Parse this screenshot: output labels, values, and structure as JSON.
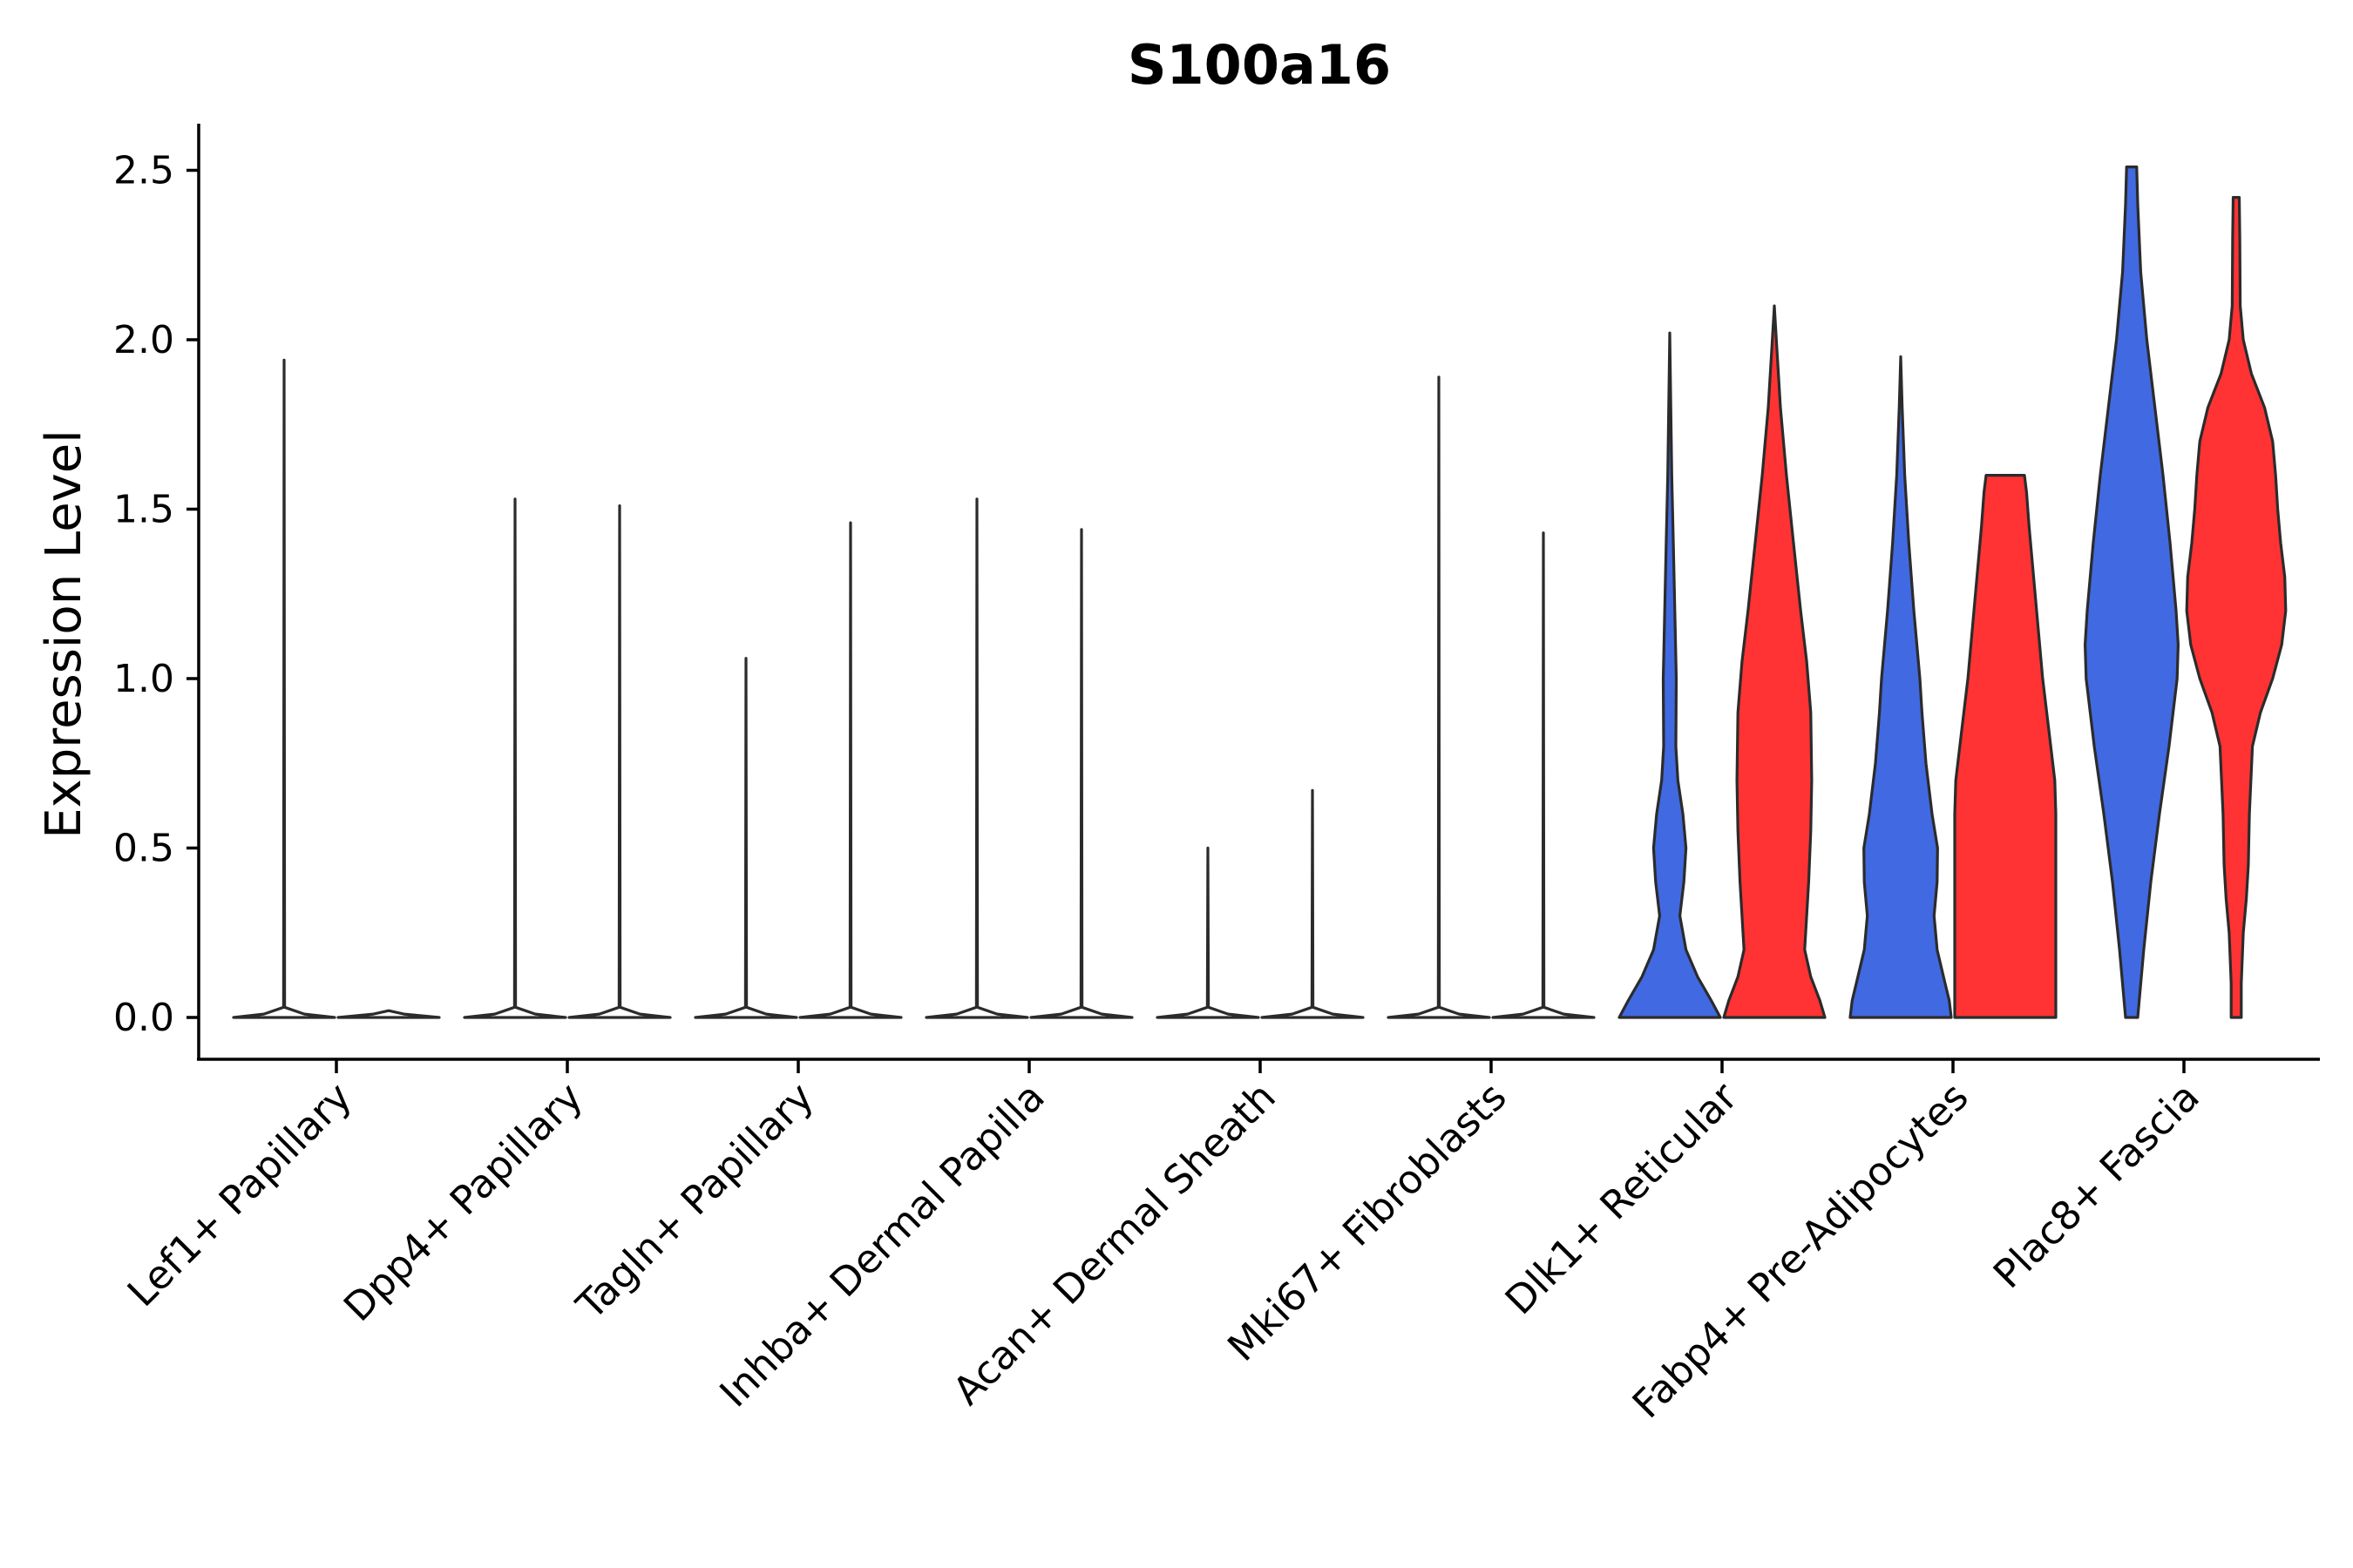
{
  "chart_data": {
    "type": "violin",
    "title": "S100a16",
    "xlabel": "",
    "ylabel": "Expression Level",
    "ylim": [
      -0.12,
      2.62
    ],
    "yticks": [
      "0.0",
      "0.5",
      "1.0",
      "1.5",
      "2.0",
      "2.5"
    ],
    "ytick_values": [
      0,
      0.5,
      1.0,
      1.5,
      2.0,
      2.5
    ],
    "grid": false,
    "legend": "none",
    "colors": {
      "low": "#ffffff",
      "blue": "#4169E1",
      "red": "#FF3333",
      "outline": "#2b2b2b"
    },
    "categories": [
      "Lef1+ Papillary",
      "Dpp4+ Papillary",
      "Tagln+ Papillary",
      "Inhba+ Dermal Papilla",
      "Acan+ Dermal Sheath",
      "Mki67+ Fibroblasts",
      "Dlk1+ Reticular",
      "Fabp4+ Pre-Adipocytes",
      "Plac8+ Fascia"
    ],
    "violins": [
      {
        "category_index": 0,
        "side": "left",
        "color": "white",
        "max": 1.94,
        "profile": [
          [
            0,
            1.0
          ],
          [
            0.01,
            0.4
          ],
          [
            0.03,
            0.01
          ],
          [
            1.94,
            0.0
          ]
        ]
      },
      {
        "category_index": 0,
        "side": "right",
        "color": "white",
        "max": 0.0,
        "profile": [
          [
            0,
            1.0
          ],
          [
            0.01,
            0.3
          ],
          [
            0.02,
            0.0
          ]
        ]
      },
      {
        "category_index": 1,
        "side": "left",
        "color": "white",
        "max": 1.53,
        "profile": [
          [
            0,
            1.0
          ],
          [
            0.01,
            0.4
          ],
          [
            0.03,
            0.01
          ],
          [
            1.53,
            0.0
          ]
        ]
      },
      {
        "category_index": 1,
        "side": "right",
        "color": "white",
        "max": 1.51,
        "profile": [
          [
            0,
            1.0
          ],
          [
            0.01,
            0.4
          ],
          [
            0.03,
            0.01
          ],
          [
            1.51,
            0.0
          ]
        ]
      },
      {
        "category_index": 2,
        "side": "left",
        "color": "white",
        "max": 1.06,
        "profile": [
          [
            0,
            1.0
          ],
          [
            0.01,
            0.4
          ],
          [
            0.03,
            0.01
          ],
          [
            1.06,
            0.0
          ]
        ]
      },
      {
        "category_index": 2,
        "side": "right",
        "color": "white",
        "max": 1.46,
        "profile": [
          [
            0,
            1.0
          ],
          [
            0.01,
            0.4
          ],
          [
            0.03,
            0.01
          ],
          [
            1.46,
            0.0
          ]
        ]
      },
      {
        "category_index": 3,
        "side": "left",
        "color": "white",
        "max": 1.53,
        "profile": [
          [
            0,
            1.0
          ],
          [
            0.01,
            0.4
          ],
          [
            0.03,
            0.01
          ],
          [
            1.53,
            0.0
          ]
        ]
      },
      {
        "category_index": 3,
        "side": "right",
        "color": "white",
        "max": 1.44,
        "profile": [
          [
            0,
            1.0
          ],
          [
            0.01,
            0.4
          ],
          [
            0.03,
            0.01
          ],
          [
            1.44,
            0.0
          ]
        ]
      },
      {
        "category_index": 4,
        "side": "left",
        "color": "white",
        "max": 0.5,
        "profile": [
          [
            0,
            1.0
          ],
          [
            0.01,
            0.4
          ],
          [
            0.03,
            0.01
          ],
          [
            0.5,
            0.0
          ]
        ]
      },
      {
        "category_index": 4,
        "side": "right",
        "color": "white",
        "max": 0.67,
        "profile": [
          [
            0,
            1.0
          ],
          [
            0.01,
            0.4
          ],
          [
            0.03,
            0.01
          ],
          [
            0.67,
            0.0
          ]
        ]
      },
      {
        "category_index": 5,
        "side": "left",
        "color": "white",
        "max": 1.89,
        "profile": [
          [
            0,
            1.0
          ],
          [
            0.01,
            0.4
          ],
          [
            0.03,
            0.01
          ],
          [
            1.89,
            0.0
          ]
        ]
      },
      {
        "category_index": 5,
        "side": "right",
        "color": "white",
        "max": 1.43,
        "profile": [
          [
            0,
            1.0
          ],
          [
            0.01,
            0.4
          ],
          [
            0.03,
            0.01
          ],
          [
            1.43,
            0.0
          ]
        ]
      },
      {
        "category_index": 6,
        "side": "left",
        "color": "blue",
        "max": 2.02,
        "profile": [
          [
            0,
            1.0
          ],
          [
            0.05,
            0.82
          ],
          [
            0.12,
            0.55
          ],
          [
            0.2,
            0.32
          ],
          [
            0.3,
            0.2
          ],
          [
            0.4,
            0.28
          ],
          [
            0.5,
            0.32
          ],
          [
            0.6,
            0.26
          ],
          [
            0.7,
            0.16
          ],
          [
            0.8,
            0.12
          ],
          [
            1.0,
            0.13
          ],
          [
            1.2,
            0.1
          ],
          [
            1.4,
            0.07
          ],
          [
            1.6,
            0.04
          ],
          [
            1.8,
            0.02
          ],
          [
            2.02,
            0.0
          ]
        ]
      },
      {
        "category_index": 6,
        "side": "right",
        "color": "red",
        "max": 2.1,
        "profile": [
          [
            0,
            1.0
          ],
          [
            0.05,
            0.9
          ],
          [
            0.12,
            0.72
          ],
          [
            0.2,
            0.6
          ],
          [
            0.3,
            0.64
          ],
          [
            0.4,
            0.68
          ],
          [
            0.55,
            0.72
          ],
          [
            0.7,
            0.74
          ],
          [
            0.9,
            0.72
          ],
          [
            1.05,
            0.64
          ],
          [
            1.2,
            0.52
          ],
          [
            1.4,
            0.38
          ],
          [
            1.6,
            0.24
          ],
          [
            1.8,
            0.12
          ],
          [
            2.0,
            0.04
          ],
          [
            2.1,
            0.0
          ]
        ]
      },
      {
        "category_index": 7,
        "side": "left",
        "color": "blue",
        "max": 1.95,
        "profile": [
          [
            0,
            1.0
          ],
          [
            0.05,
            0.96
          ],
          [
            0.1,
            0.88
          ],
          [
            0.2,
            0.72
          ],
          [
            0.3,
            0.66
          ],
          [
            0.4,
            0.72
          ],
          [
            0.5,
            0.73
          ],
          [
            0.6,
            0.62
          ],
          [
            0.75,
            0.5
          ],
          [
            0.9,
            0.42
          ],
          [
            1.0,
            0.38
          ],
          [
            1.2,
            0.26
          ],
          [
            1.4,
            0.16
          ],
          [
            1.6,
            0.08
          ],
          [
            1.8,
            0.03
          ],
          [
            1.95,
            0.0
          ]
        ]
      },
      {
        "category_index": 7,
        "side": "right",
        "color": "red",
        "max": 1.6,
        "profile": [
          [
            0,
            1.0
          ],
          [
            0.2,
            1.0
          ],
          [
            0.4,
            1.0
          ],
          [
            0.6,
            1.0
          ],
          [
            0.7,
            0.98
          ],
          [
            0.85,
            0.86
          ],
          [
            1.0,
            0.74
          ],
          [
            1.15,
            0.65
          ],
          [
            1.3,
            0.56
          ],
          [
            1.45,
            0.47
          ],
          [
            1.55,
            0.42
          ],
          [
            1.6,
            0.38
          ]
        ]
      },
      {
        "category_index": 8,
        "side": "left",
        "color": "blue",
        "max": 2.51,
        "profile": [
          [
            0,
            0.12
          ],
          [
            0.2,
            0.24
          ],
          [
            0.4,
            0.38
          ],
          [
            0.6,
            0.55
          ],
          [
            0.8,
            0.74
          ],
          [
            1.0,
            0.9
          ],
          [
            1.1,
            0.92
          ],
          [
            1.2,
            0.88
          ],
          [
            1.4,
            0.76
          ],
          [
            1.6,
            0.62
          ],
          [
            1.8,
            0.46
          ],
          [
            2.0,
            0.3
          ],
          [
            2.2,
            0.18
          ],
          [
            2.4,
            0.12
          ],
          [
            2.51,
            0.1
          ]
        ]
      },
      {
        "category_index": 8,
        "side": "right",
        "color": "red",
        "max": 2.42,
        "profile": [
          [
            0,
            0.1
          ],
          [
            0.1,
            0.1
          ],
          [
            0.25,
            0.14
          ],
          [
            0.35,
            0.2
          ],
          [
            0.45,
            0.24
          ],
          [
            0.6,
            0.26
          ],
          [
            0.8,
            0.32
          ],
          [
            0.9,
            0.48
          ],
          [
            1.0,
            0.72
          ],
          [
            1.1,
            0.9
          ],
          [
            1.2,
            0.98
          ],
          [
            1.3,
            0.96
          ],
          [
            1.4,
            0.88
          ],
          [
            1.5,
            0.82
          ],
          [
            1.6,
            0.78
          ],
          [
            1.7,
            0.72
          ],
          [
            1.8,
            0.56
          ],
          [
            1.9,
            0.3
          ],
          [
            2.0,
            0.14
          ],
          [
            2.1,
            0.08
          ],
          [
            2.3,
            0.07
          ],
          [
            2.42,
            0.06
          ]
        ]
      }
    ]
  }
}
